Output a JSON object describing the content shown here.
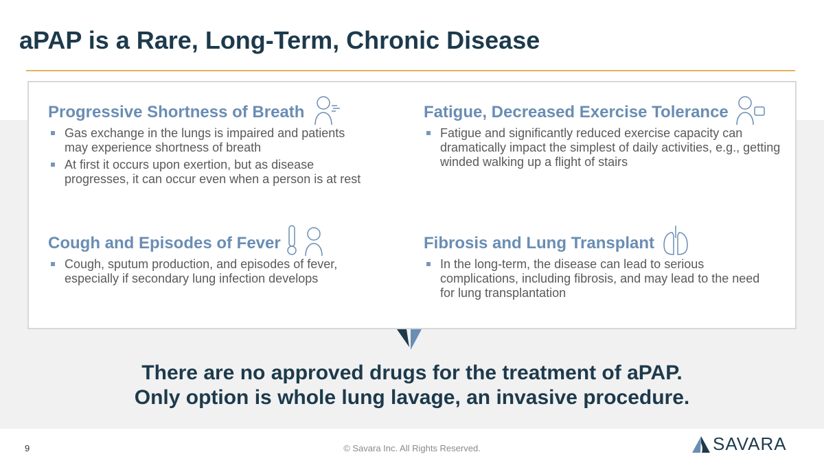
{
  "title": "aPAP is a Rare, Long-Term, Chronic Disease",
  "sections": [
    {
      "heading": "Progressive Shortness of Breath",
      "icon": "person-breathing-icon",
      "bullets": [
        "Gas exchange in the lungs is impaired and patients may experience shortness of breath",
        "At first it occurs upon exertion, but as disease progresses, it can occur even when a person is at rest"
      ]
    },
    {
      "heading": "Fatigue, Decreased Exercise Tolerance",
      "icon": "person-tired-icon",
      "bullets": [
        "Fatigue and significantly reduced exercise capacity can dramatically impact the simplest of daily activities, e.g., getting winded walking up a flight of stairs"
      ]
    },
    {
      "heading": "Cough and Episodes of Fever",
      "icon": "thermometer-cough-icon",
      "bullets": [
        "Cough, sputum production, and episodes of fever, especially if secondary lung infection develops"
      ]
    },
    {
      "heading": "Fibrosis and Lung Transplant",
      "icon": "lungs-icon",
      "bullets": [
        "In the long-term, the disease can lead to serious complications, including fibrosis, and may lead to the need for lung transplantation"
      ]
    }
  ],
  "message": [
    "There are no approved drugs for the treatment of aPAP.",
    "Only option is whole lung lavage, an invasive procedure."
  ],
  "footer": {
    "page": "9",
    "copyright": "© Savara Inc. All Rights Reserved.",
    "logo": "SAVARA"
  },
  "colors": {
    "title": "#1d3a4c",
    "heading": "#6a8db4",
    "accent": "#e3b35e"
  }
}
